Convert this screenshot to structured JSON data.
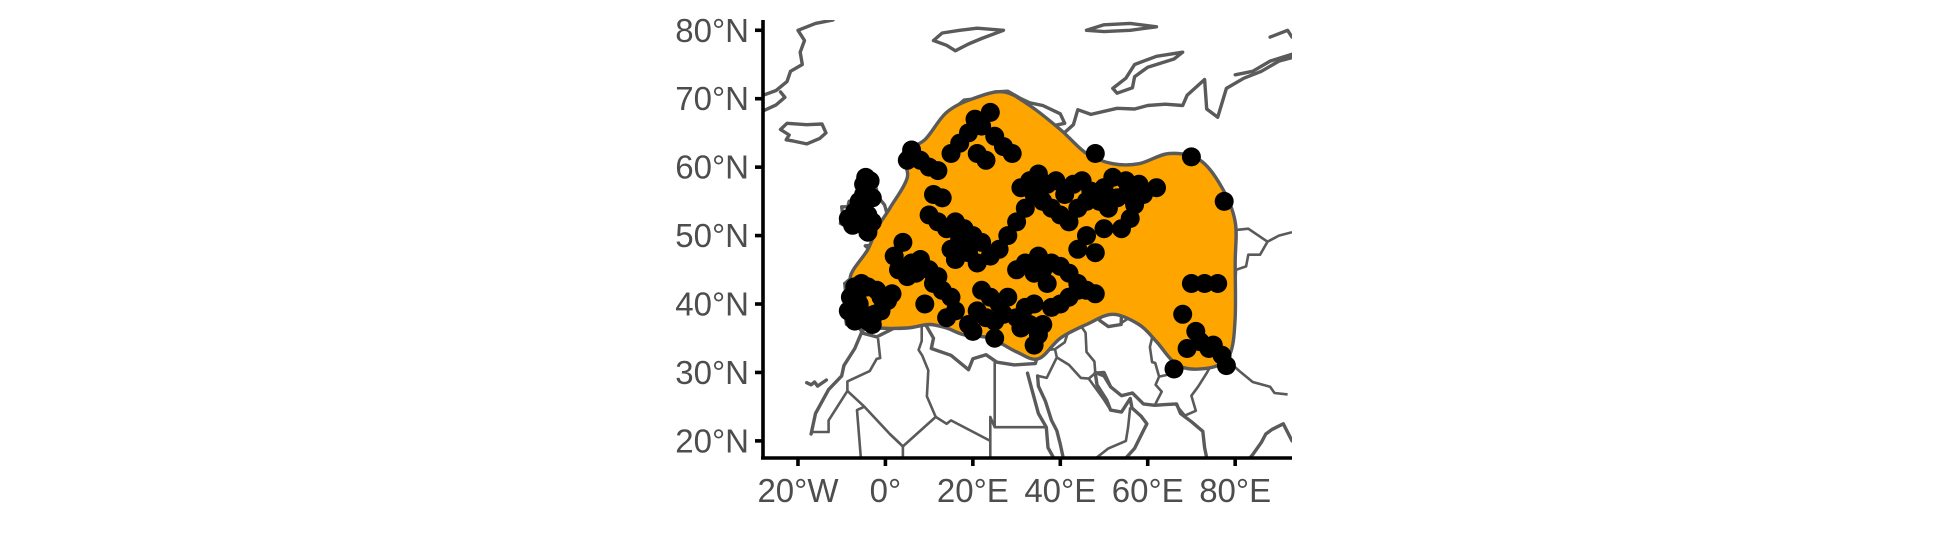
{
  "colors": {
    "range_fill": "#FFA500",
    "occurrence_point": "#000000",
    "coastline": "#5a5a5a",
    "axis": "#000000",
    "tick_text": "#4d4d4d"
  },
  "chart_data": {
    "type": "scatter",
    "title": "",
    "xlabel": "",
    "ylabel": "",
    "xlim": [
      -28,
      93
    ],
    "ylim": [
      17.5,
      81.5
    ],
    "x_ticks": [
      {
        "value": -20,
        "label": "20°W"
      },
      {
        "value": 0,
        "label": "0°"
      },
      {
        "value": 20,
        "label": "20°E"
      },
      {
        "value": 40,
        "label": "40°E"
      },
      {
        "value": 60,
        "label": "60°E"
      },
      {
        "value": 80,
        "label": "80°E"
      }
    ],
    "y_ticks": [
      {
        "value": 80,
        "label": "80°N"
      },
      {
        "value": 70,
        "label": "70°N"
      },
      {
        "value": 60,
        "label": "60°N"
      },
      {
        "value": 50,
        "label": "50°N"
      },
      {
        "value": 40,
        "label": "40°N"
      },
      {
        "value": 30,
        "label": "30°N"
      },
      {
        "value": 20,
        "label": "20°N"
      }
    ],
    "grid": false,
    "legend": "none",
    "layers": [
      "coastlines",
      "country-borders",
      "range-polygon",
      "occurrence-points"
    ],
    "range_polygon": [
      [
        -6,
        41
      ],
      [
        -8,
        37
      ],
      [
        -2,
        36.5
      ],
      [
        5,
        36.5
      ],
      [
        10,
        37
      ],
      [
        14,
        36.5
      ],
      [
        18,
        35.5
      ],
      [
        24,
        35
      ],
      [
        30,
        33
      ],
      [
        35,
        32
      ],
      [
        40,
        35
      ],
      [
        46,
        37
      ],
      [
        52,
        38.5
      ],
      [
        58,
        37
      ],
      [
        62,
        34.5
      ],
      [
        66,
        31.5
      ],
      [
        70,
        30.5
      ],
      [
        76,
        31
      ],
      [
        79,
        33
      ],
      [
        80,
        38
      ],
      [
        80,
        46
      ],
      [
        80,
        52
      ],
      [
        77,
        57
      ],
      [
        72,
        61
      ],
      [
        65,
        62
      ],
      [
        58,
        60.5
      ],
      [
        52,
        60.5
      ],
      [
        46,
        62
      ],
      [
        40,
        65.5
      ],
      [
        33,
        69
      ],
      [
        27,
        71
      ],
      [
        20,
        70
      ],
      [
        14,
        68
      ],
      [
        9,
        64
      ],
      [
        4,
        62
      ],
      [
        5,
        58.5
      ],
      [
        1,
        54
      ],
      [
        -2,
        51
      ],
      [
        -4,
        48
      ],
      [
        -8,
        44
      ]
    ],
    "points": [
      [
        -8.5,
        52.5
      ],
      [
        -7,
        53.5
      ],
      [
        -6,
        55
      ],
      [
        -5,
        57.5
      ],
      [
        -4.5,
        58.5
      ],
      [
        -3.5,
        58
      ],
      [
        -5,
        56
      ],
      [
        -7.5,
        51.5
      ],
      [
        -5.5,
        54
      ],
      [
        -4,
        53
      ],
      [
        -3,
        52
      ],
      [
        -6.5,
        52.5
      ],
      [
        -4,
        50.5
      ],
      [
        -3,
        55.5
      ],
      [
        -8.5,
        39
      ],
      [
        -8,
        41
      ],
      [
        -7,
        42.5
      ],
      [
        -5.5,
        43
      ],
      [
        -4,
        42.5
      ],
      [
        -2,
        42
      ],
      [
        -1,
        41
      ],
      [
        0.5,
        40.5
      ],
      [
        1.5,
        41.5
      ],
      [
        -6,
        40
      ],
      [
        -5,
        38.5
      ],
      [
        -4,
        37.5
      ],
      [
        -3,
        37
      ],
      [
        -7,
        37.5
      ],
      [
        -2.5,
        38.5
      ],
      [
        -1,
        39
      ],
      [
        -6.5,
        41
      ],
      [
        3,
        45
      ],
      [
        5,
        44
      ],
      [
        2,
        47
      ],
      [
        4,
        49
      ],
      [
        6,
        46
      ],
      [
        7,
        44.5
      ],
      [
        8,
        46.5
      ],
      [
        10,
        45
      ],
      [
        12,
        44
      ],
      [
        13,
        42
      ],
      [
        15,
        41
      ],
      [
        16,
        39
      ],
      [
        14,
        38
      ],
      [
        9,
        40
      ],
      [
        11,
        43
      ],
      [
        5,
        61
      ],
      [
        6,
        62.5
      ],
      [
        8,
        61
      ],
      [
        10,
        60
      ],
      [
        12,
        59.5
      ],
      [
        15,
        62
      ],
      [
        17,
        63.5
      ],
      [
        19,
        65
      ],
      [
        20.5,
        67
      ],
      [
        24,
        68
      ],
      [
        22,
        66
      ],
      [
        25,
        64.5
      ],
      [
        27,
        63
      ],
      [
        29,
        62
      ],
      [
        21,
        62
      ],
      [
        23,
        61
      ],
      [
        11,
        56
      ],
      [
        13,
        55.5
      ],
      [
        10,
        53
      ],
      [
        12,
        52
      ],
      [
        14,
        51
      ],
      [
        16,
        52
      ],
      [
        18,
        51
      ],
      [
        20,
        50
      ],
      [
        22,
        49
      ],
      [
        17,
        49.5
      ],
      [
        19,
        47.5
      ],
      [
        16,
        46.5
      ],
      [
        15,
        48
      ],
      [
        21,
        46
      ],
      [
        24,
        47
      ],
      [
        26,
        48
      ],
      [
        28,
        50
      ],
      [
        30,
        52
      ],
      [
        32,
        54
      ],
      [
        34,
        56
      ],
      [
        36,
        55
      ],
      [
        38,
        54
      ],
      [
        40,
        53
      ],
      [
        42,
        52
      ],
      [
        44,
        54
      ],
      [
        46,
        55
      ],
      [
        48,
        56
      ],
      [
        50,
        57
      ],
      [
        31,
        57
      ],
      [
        33,
        58
      ],
      [
        35,
        59
      ],
      [
        37,
        57.5
      ],
      [
        39,
        58
      ],
      [
        41,
        56
      ],
      [
        43,
        57.5
      ],
      [
        45,
        58
      ],
      [
        47,
        56.5
      ],
      [
        49,
        55
      ],
      [
        51,
        54
      ],
      [
        53,
        55.5
      ],
      [
        55,
        56
      ],
      [
        57,
        54.5
      ],
      [
        59,
        56
      ],
      [
        22,
        42
      ],
      [
        24,
        41
      ],
      [
        26,
        40
      ],
      [
        28,
        41
      ],
      [
        23,
        38
      ],
      [
        21,
        39
      ],
      [
        25,
        37.5
      ],
      [
        27,
        38.5
      ],
      [
        30,
        38
      ],
      [
        32,
        39.5
      ],
      [
        34,
        40
      ],
      [
        36,
        37
      ],
      [
        38,
        39.5
      ],
      [
        40,
        40
      ],
      [
        42,
        41
      ],
      [
        44,
        42
      ],
      [
        30,
        45
      ],
      [
        32,
        46
      ],
      [
        34,
        44.5
      ],
      [
        36,
        45
      ],
      [
        38,
        46
      ],
      [
        40,
        45.5
      ],
      [
        42,
        44.5
      ],
      [
        44,
        43
      ],
      [
        46,
        42
      ],
      [
        48,
        41.5
      ],
      [
        37,
        43
      ],
      [
        35,
        47
      ],
      [
        48,
        62
      ],
      [
        70,
        61.5
      ],
      [
        77.5,
        55
      ],
      [
        68,
        38.5
      ],
      [
        70,
        43
      ],
      [
        73,
        43
      ],
      [
        76,
        43
      ],
      [
        71,
        36
      ],
      [
        72,
        34.5
      ],
      [
        74,
        33.5
      ],
      [
        75,
        34
      ],
      [
        77,
        32.5
      ],
      [
        78,
        31
      ],
      [
        66,
        30.5
      ],
      [
        69,
        33.5
      ],
      [
        34,
        34
      ],
      [
        35,
        35.5
      ],
      [
        33,
        37
      ],
      [
        31,
        36.5
      ],
      [
        19,
        37
      ],
      [
        25,
        35
      ],
      [
        20,
        36
      ],
      [
        52,
        58.5
      ],
      [
        55,
        58
      ],
      [
        58,
        57.5
      ],
      [
        62,
        57
      ],
      [
        56,
        52.5
      ],
      [
        54,
        51
      ],
      [
        50,
        51
      ],
      [
        46,
        50
      ],
      [
        44,
        48
      ],
      [
        48,
        47.5
      ]
    ]
  }
}
